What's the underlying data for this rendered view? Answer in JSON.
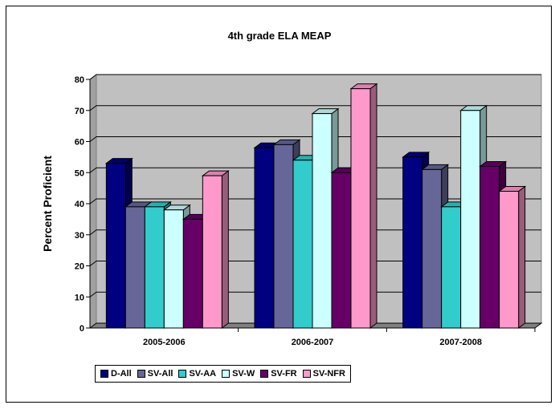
{
  "chart_data": {
    "type": "bar",
    "title": "4th grade ELA MEAP",
    "xlabel": "",
    "ylabel": "Percent Proficient",
    "ylim": [
      0,
      80
    ],
    "yticks": [
      0,
      10,
      20,
      30,
      40,
      50,
      60,
      70,
      80
    ],
    "categories": [
      "2005-2006",
      "2006-2007",
      "2007-2008"
    ],
    "grid": true,
    "legend_position": "bottom",
    "series": [
      {
        "name": "D-All",
        "color": "#000080",
        "values": [
          53,
          58,
          55
        ]
      },
      {
        "name": "SV-All",
        "color": "#666699",
        "values": [
          39,
          59,
          51
        ]
      },
      {
        "name": "SV-AA",
        "color": "#33CCCC",
        "values": [
          39,
          54,
          39
        ]
      },
      {
        "name": "SV-W",
        "color": "#CCFFFF",
        "values": [
          38,
          69,
          70
        ]
      },
      {
        "name": "SV-FR",
        "color": "#660066",
        "values": [
          35,
          50,
          52
        ]
      },
      {
        "name": "SV-NFR",
        "color": "#FF99CC",
        "values": [
          49,
          77,
          44
        ]
      }
    ]
  }
}
